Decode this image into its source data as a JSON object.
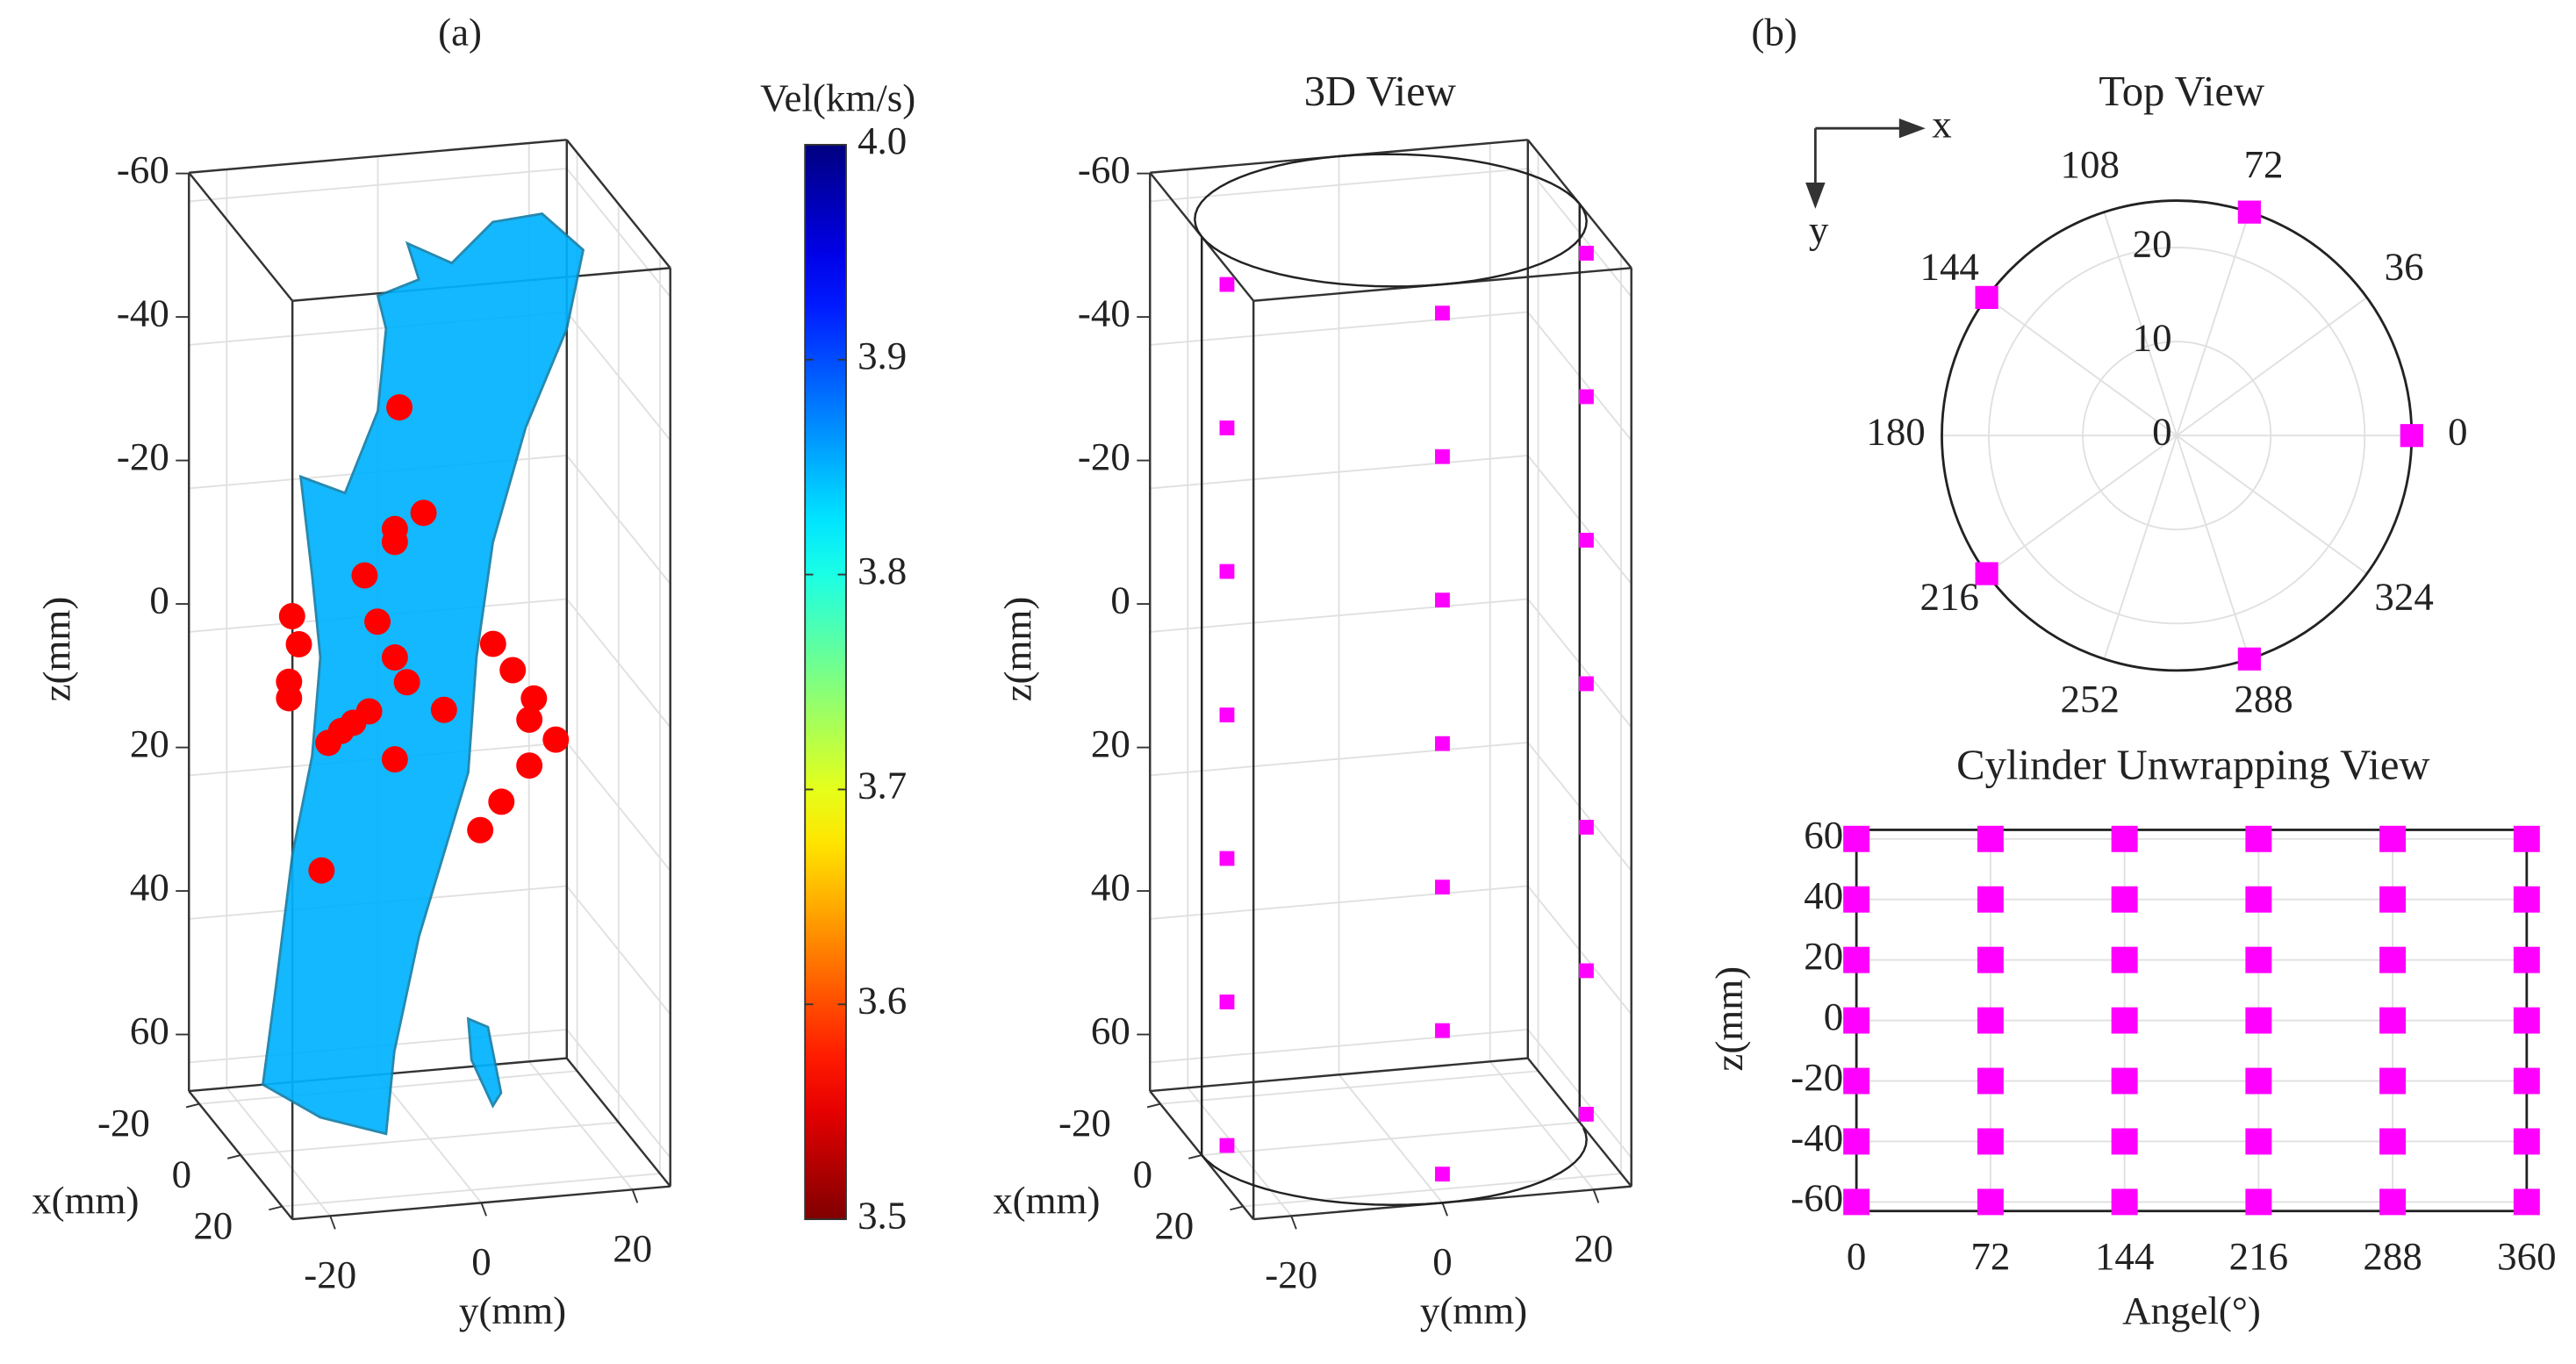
{
  "chart_data": [
    {
      "type": "isosurface3d",
      "panel_label": "(a)",
      "xlabel": "x(mm)",
      "ylabel": "y(mm)",
      "zlabel": "z(mm)",
      "xlim": [
        -25,
        25
      ],
      "ylim": [
        -25,
        25
      ],
      "zlim": [
        -64,
        64
      ],
      "xticks": [
        -20,
        0,
        20
      ],
      "yticks": [
        -20,
        0,
        20
      ],
      "zticks": [
        -60,
        -40,
        -20,
        0,
        20,
        40,
        60
      ],
      "isovalue": 3.85,
      "points": {
        "color": "#ff0000",
        "x": [
          0,
          0,
          0,
          0,
          0,
          0,
          0,
          0,
          0,
          0,
          0,
          0,
          0,
          0,
          0,
          0,
          0,
          0,
          0,
          0,
          0,
          0,
          0,
          0,
          0,
          0,
          0
        ],
        "y": [
          -4,
          -0.8,
          -4.6,
          -4.6,
          -8.6,
          -18.2,
          -17.3,
          -18.6,
          -18.6,
          -6.9,
          -4.6,
          -3,
          8.4,
          11,
          13.8,
          13.2,
          16.7,
          13.2,
          -10.1,
          -11.7,
          -8,
          -13.4,
          1.9,
          9.5,
          6.7,
          -14.3,
          -4.6
        ],
        "z": [
          -38.3,
          -23.3,
          -21.4,
          -19.6,
          -15.3,
          -10.5,
          -6.5,
          -1.4,
          0.9,
          -8.7,
          -3.5,
          0.1,
          -4.2,
          -0.3,
          3.9,
          6.8,
          9.9,
          13.2,
          5.1,
          6.1,
          3.7,
          7.6,
          4.4,
          17.9,
          21.6,
          25.3,
          10.7
        ]
      },
      "colorbar": {
        "label": "Vel(km/s)",
        "colormap": "jet_r",
        "clim": [
          3.5,
          4.0
        ],
        "ticks": [
          {
            "value": 4,
            "label": "4.0"
          },
          3.9,
          3.8,
          3.7,
          3.6,
          3.5
        ]
      }
    },
    {
      "type": "cylinder3d",
      "title": "3D View",
      "xlabel": "x(mm)",
      "ylabel": "y(mm)",
      "zlabel": "z(mm)",
      "xlim": [
        -25,
        25
      ],
      "ylim": [
        -25,
        25
      ],
      "zlim": [
        -64,
        64
      ],
      "xticks": [
        -20,
        0,
        20
      ],
      "yticks": [
        -20,
        0,
        20
      ],
      "zticks": [
        -60,
        -40,
        -20,
        0,
        20,
        40,
        60
      ],
      "radius": 25,
      "color": "#ff00ff",
      "sensor_angles": [
        0,
        72,
        144,
        216,
        288
      ],
      "sensor_z": [
        -60,
        -40,
        -20,
        0,
        20,
        40,
        60
      ]
    },
    {
      "type": "polar",
      "panel_label": "(b)",
      "title": "Top View",
      "axes_icon": {
        "x": "x",
        "y": "y"
      },
      "rlim": [
        0,
        25
      ],
      "rticks": [
        0,
        10,
        20
      ],
      "thetaticks": [
        0,
        36,
        72,
        108,
        144,
        180,
        216,
        252,
        288,
        324
      ],
      "theta": [
        0,
        72,
        144,
        216,
        288
      ],
      "r": [
        25,
        25,
        25,
        25,
        25
      ],
      "color": "#ff00ff"
    },
    {
      "type": "scatter",
      "title": "Cylinder Unwrapping View",
      "xlabel": "Angel(°)",
      "ylabel": "z(mm)",
      "xlim": [
        0,
        360
      ],
      "ylim": [
        -63,
        63
      ],
      "xticks": [
        0,
        72,
        144,
        216,
        288,
        360
      ],
      "yticks": [
        60,
        40,
        20,
        0,
        -20,
        -40,
        -60
      ],
      "angles": [
        0,
        72,
        144,
        216,
        288,
        360
      ],
      "z": [
        60,
        40,
        20,
        0,
        -20,
        -40,
        -60
      ],
      "color": "#ff00ff",
      "grid": true
    }
  ]
}
